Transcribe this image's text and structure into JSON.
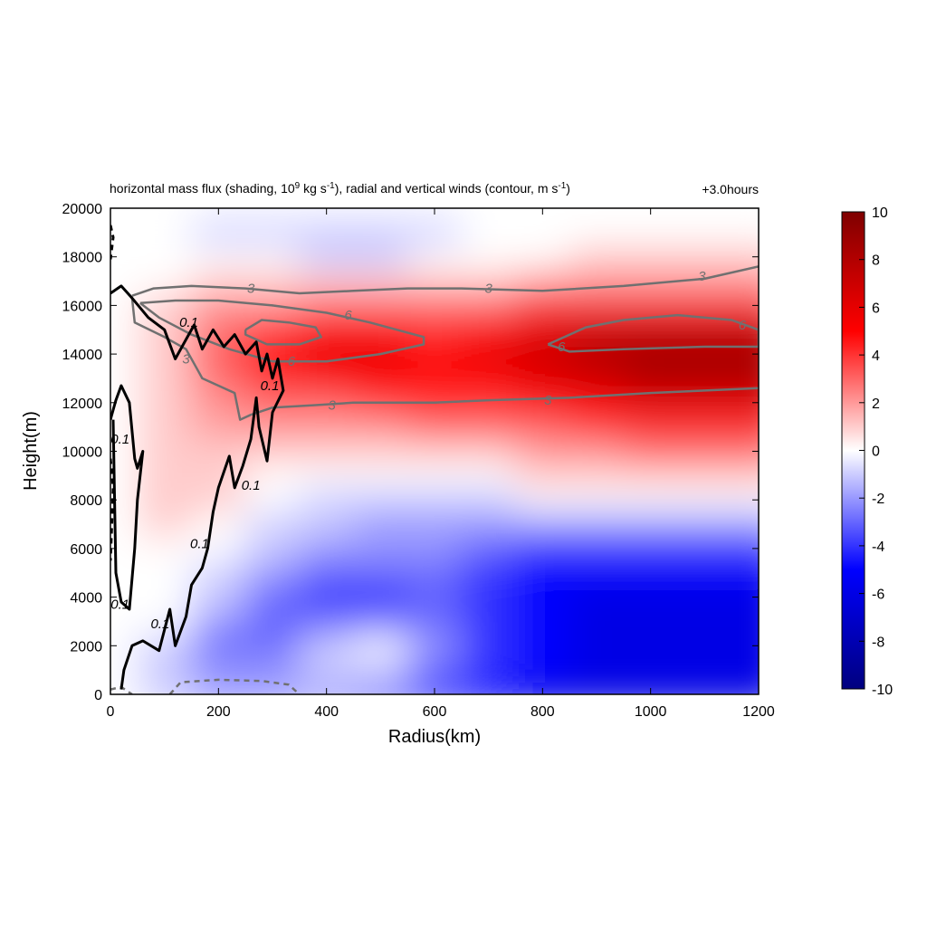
{
  "title": {
    "prefix": "horizontal mass flux (shading, 10",
    "sup1": "9",
    "mid": " kg s",
    "sup2": "-1",
    "mid2": "), radial and vertical winds (contour, m s",
    "sup3": "-1",
    "suffix": ")",
    "time_label": "+3.0hours"
  },
  "chart_data": {
    "type": "heatmap",
    "xlabel": "Radius(km)",
    "ylabel": "Height(m)",
    "xlim": [
      0,
      1200
    ],
    "ylim": [
      0,
      20000
    ],
    "x_ticks": [
      0,
      200,
      400,
      600,
      800,
      1000,
      1200
    ],
    "y_ticks": [
      0,
      2000,
      4000,
      6000,
      8000,
      10000,
      12000,
      14000,
      16000,
      18000,
      20000
    ],
    "colorbar": {
      "range": [
        -10,
        10
      ],
      "ticks": [
        10,
        8,
        6,
        4,
        2,
        0,
        -2,
        -4,
        -6,
        -8,
        -10
      ],
      "low_color": "#00007f",
      "mid_color": "#ffffff",
      "high_color": "#7f0000"
    },
    "shading_grid": {
      "x": [
        0,
        100,
        200,
        300,
        400,
        500,
        600,
        700,
        800,
        900,
        1000,
        1100,
        1200
      ],
      "y": [
        0,
        1000,
        2000,
        3000,
        4000,
        5000,
        6000,
        7000,
        8000,
        9000,
        10000,
        11000,
        12000,
        13000,
        14000,
        15000,
        16000,
        17000,
        18000,
        19000
      ],
      "values": [
        [
          0,
          -1,
          -2,
          -2,
          -2,
          -3,
          -4,
          -5,
          -6,
          -6,
          -6,
          -6,
          -6
        ],
        [
          0,
          -1,
          -2,
          -2,
          -1,
          -1,
          -3,
          -4,
          -5,
          -6,
          -6,
          -6,
          -6
        ],
        [
          0,
          -1,
          -3,
          -3,
          -1,
          0,
          -2,
          -4,
          -5,
          -6,
          -6,
          -6,
          -6
        ],
        [
          0,
          0,
          -2,
          -3,
          -3,
          -3,
          -3,
          -4,
          -5,
          -6,
          -6,
          -6,
          -6
        ],
        [
          0,
          0,
          -1,
          -3,
          -4,
          -4,
          -3,
          -4,
          -5,
          -6,
          -6,
          -6,
          -6
        ],
        [
          0,
          0,
          -1,
          -2,
          -3,
          -3,
          -3,
          -4,
          -5,
          -5,
          -5,
          -5,
          -5
        ],
        [
          0,
          0,
          0,
          -1,
          -2,
          -2,
          -2,
          -3,
          -4,
          -4,
          -4,
          -4,
          -4
        ],
        [
          0,
          1,
          0,
          -1,
          -1,
          -2,
          -2,
          -2,
          -2,
          -2,
          -2,
          -2,
          -2
        ],
        [
          0,
          1,
          1,
          0,
          -1,
          -1,
          -1,
          -1,
          0,
          0,
          0,
          0,
          0
        ],
        [
          0,
          1,
          1,
          0,
          0,
          0,
          0,
          0,
          1,
          1,
          1,
          1,
          1
        ],
        [
          0,
          1,
          1,
          1,
          1,
          1,
          1,
          1,
          2,
          2,
          3,
          3,
          3
        ],
        [
          0,
          1,
          2,
          2,
          2,
          2,
          3,
          3,
          3,
          4,
          4,
          4,
          4
        ],
        [
          0,
          1,
          2,
          3,
          3,
          4,
          4,
          4,
          5,
          5,
          6,
          6,
          6
        ],
        [
          0,
          1,
          3,
          4,
          5,
          5,
          5,
          5,
          6,
          7,
          8,
          8,
          8
        ],
        [
          0,
          1,
          3,
          5,
          6,
          6,
          5,
          6,
          7,
          8,
          9,
          9,
          9
        ],
        [
          0,
          1,
          3,
          4,
          5,
          5,
          4,
          5,
          6,
          7,
          7,
          7,
          7
        ],
        [
          0,
          1,
          2,
          2,
          3,
          3,
          3,
          3,
          4,
          4,
          4,
          4,
          4
        ],
        [
          0,
          0,
          1,
          1,
          1,
          1,
          1,
          1,
          2,
          2,
          2,
          2,
          2
        ],
        [
          0,
          0,
          0,
          0,
          -1,
          -1,
          0,
          0,
          0,
          1,
          1,
          1,
          1
        ],
        [
          0,
          0,
          -1,
          -1,
          -1,
          -1,
          -1,
          0,
          0,
          0,
          0,
          0,
          0
        ]
      ]
    },
    "contours": [
      {
        "field": "radial wind",
        "color": "#707070",
        "dash": false,
        "width": 2.5,
        "label_value": "3",
        "points": [
          [
            40,
            16400
          ],
          [
            80,
            16700
          ],
          [
            150,
            16800
          ],
          [
            250,
            16700
          ],
          [
            350,
            16500
          ],
          [
            450,
            16600
          ],
          [
            550,
            16700
          ],
          [
            650,
            16700
          ],
          [
            800,
            16600
          ],
          [
            950,
            16800
          ],
          [
            1100,
            17100
          ],
          [
            1200,
            17600
          ]
        ],
        "labels": [
          [
            260,
            16700
          ],
          [
            700,
            16700
          ],
          [
            1095,
            17200
          ]
        ]
      },
      {
        "field": "radial wind",
        "color": "#707070",
        "dash": false,
        "width": 2.5,
        "label_value": "3",
        "points": [
          [
            40,
            16300
          ],
          [
            45,
            15300
          ],
          [
            100,
            14700
          ],
          [
            140,
            14200
          ],
          [
            160,
            13400
          ],
          [
            170,
            13000
          ],
          [
            200,
            12700
          ],
          [
            230,
            12400
          ],
          [
            240,
            11300
          ],
          [
            260,
            11500
          ],
          [
            300,
            11800
          ],
          [
            380,
            11900
          ],
          [
            450,
            12000
          ],
          [
            600,
            12000
          ],
          [
            700,
            12100
          ],
          [
            850,
            12200
          ],
          [
            1000,
            12400
          ],
          [
            1200,
            12600
          ]
        ],
        "labels": [
          [
            140,
            13800
          ],
          [
            410,
            11900
          ],
          [
            810,
            12100
          ]
        ]
      },
      {
        "field": "radial wind",
        "color": "#707070",
        "dash": false,
        "width": 2.5,
        "label_value": "6",
        "points": [
          [
            55,
            16100
          ],
          [
            120,
            16200
          ],
          [
            200,
            16200
          ],
          [
            300,
            16000
          ],
          [
            400,
            15700
          ],
          [
            480,
            15300
          ],
          [
            580,
            14700
          ],
          [
            580,
            14400
          ],
          [
            500,
            14000
          ],
          [
            400,
            13700
          ],
          [
            300,
            13700
          ],
          [
            220,
            14200
          ],
          [
            150,
            14800
          ],
          [
            90,
            15500
          ],
          [
            55,
            16100
          ]
        ],
        "labels": [
          [
            440,
            15600
          ],
          [
            335,
            13700
          ]
        ]
      },
      {
        "field": "radial wind",
        "color": "#707070",
        "dash": false,
        "width": 2.5,
        "label_value": "6",
        "points": [
          [
            250,
            15000
          ],
          [
            280,
            15400
          ],
          [
            330,
            15300
          ],
          [
            380,
            15100
          ],
          [
            390,
            14700
          ],
          [
            350,
            14400
          ],
          [
            290,
            14400
          ],
          [
            250,
            14800
          ],
          [
            250,
            15000
          ]
        ],
        "labels": []
      },
      {
        "field": "radial wind",
        "color": "#707070",
        "dash": false,
        "width": 2.5,
        "label_value": "6",
        "points": [
          [
            810,
            14400
          ],
          [
            880,
            15100
          ],
          [
            950,
            15400
          ],
          [
            1050,
            15600
          ],
          [
            1150,
            15400
          ],
          [
            1200,
            15000
          ],
          [
            1200,
            14300
          ],
          [
            1100,
            14300
          ],
          [
            950,
            14200
          ],
          [
            850,
            14100
          ],
          [
            810,
            14400
          ]
        ],
        "labels": [
          [
            835,
            14300
          ],
          [
            1170,
            15200
          ]
        ]
      },
      {
        "field": "radial wind",
        "color": "#707070",
        "dash": true,
        "width": 2.5,
        "label_value": "",
        "points": [
          [
            110,
            0
          ],
          [
            130,
            500
          ],
          [
            200,
            600
          ],
          [
            280,
            550
          ],
          [
            330,
            400
          ],
          [
            350,
            0
          ]
        ],
        "labels": []
      },
      {
        "field": "radial wind",
        "color": "#707070",
        "dash": true,
        "width": 2.5,
        "label_value": "",
        "points": [
          [
            0,
            200
          ],
          [
            20,
            300
          ],
          [
            40,
            0
          ]
        ],
        "labels": []
      },
      {
        "field": "vertical wind",
        "color": "#000000",
        "dash": false,
        "width": 3,
        "label_value": "0.1",
        "points": [
          [
            0,
            16500
          ],
          [
            20,
            16800
          ],
          [
            40,
            16300
          ],
          [
            70,
            15500
          ],
          [
            100,
            15000
          ],
          [
            120,
            13800
          ],
          [
            140,
            14600
          ],
          [
            155,
            15200
          ],
          [
            170,
            14200
          ],
          [
            190,
            15000
          ],
          [
            210,
            14300
          ],
          [
            230,
            14800
          ],
          [
            250,
            14000
          ],
          [
            270,
            14500
          ],
          [
            280,
            13300
          ],
          [
            290,
            14000
          ],
          [
            300,
            13000
          ],
          [
            310,
            13800
          ],
          [
            320,
            12500
          ],
          [
            300,
            11600
          ],
          [
            290,
            9600
          ],
          [
            275,
            11000
          ],
          [
            270,
            12200
          ],
          [
            260,
            10500
          ],
          [
            245,
            9400
          ],
          [
            230,
            8500
          ],
          [
            220,
            9800
          ],
          [
            200,
            8500
          ],
          [
            190,
            7500
          ],
          [
            180,
            6000
          ],
          [
            170,
            5200
          ],
          [
            150,
            4500
          ],
          [
            140,
            3200
          ],
          [
            120,
            2000
          ],
          [
            110,
            3500
          ],
          [
            90,
            1800
          ],
          [
            60,
            2200
          ],
          [
            40,
            2000
          ],
          [
            25,
            1000
          ],
          [
            20,
            200
          ]
        ],
        "labels": [
          [
            145,
            15300
          ],
          [
            295,
            12700
          ],
          [
            260,
            8600
          ],
          [
            165,
            6200
          ],
          [
            92,
            2900
          ]
        ]
      },
      {
        "field": "vertical wind",
        "color": "#000000",
        "dash": false,
        "width": 3,
        "label_value": "0.1",
        "points": [
          [
            0,
            11300
          ],
          [
            10,
            12100
          ],
          [
            20,
            12700
          ],
          [
            35,
            12000
          ],
          [
            45,
            9700
          ],
          [
            50,
            9300
          ],
          [
            60,
            10000
          ],
          [
            50,
            8000
          ],
          [
            45,
            6000
          ],
          [
            35,
            3500
          ],
          [
            20,
            3800
          ],
          [
            10,
            5000
          ],
          [
            5,
            11300
          ]
        ],
        "labels": [
          [
            18,
            10500
          ],
          [
            18,
            3700
          ]
        ]
      },
      {
        "field": "vertical wind",
        "color": "#000000",
        "dash": true,
        "width": 3,
        "label_value": "",
        "points": [
          [
            0,
            9700
          ],
          [
            5,
            8500
          ],
          [
            0,
            5500
          ]
        ],
        "labels": []
      },
      {
        "field": "vertical wind",
        "color": "#000000",
        "dash": true,
        "width": 3,
        "label_value": "",
        "points": [
          [
            0,
            19300
          ],
          [
            5,
            18800
          ],
          [
            0,
            17900
          ]
        ],
        "labels": []
      }
    ]
  }
}
